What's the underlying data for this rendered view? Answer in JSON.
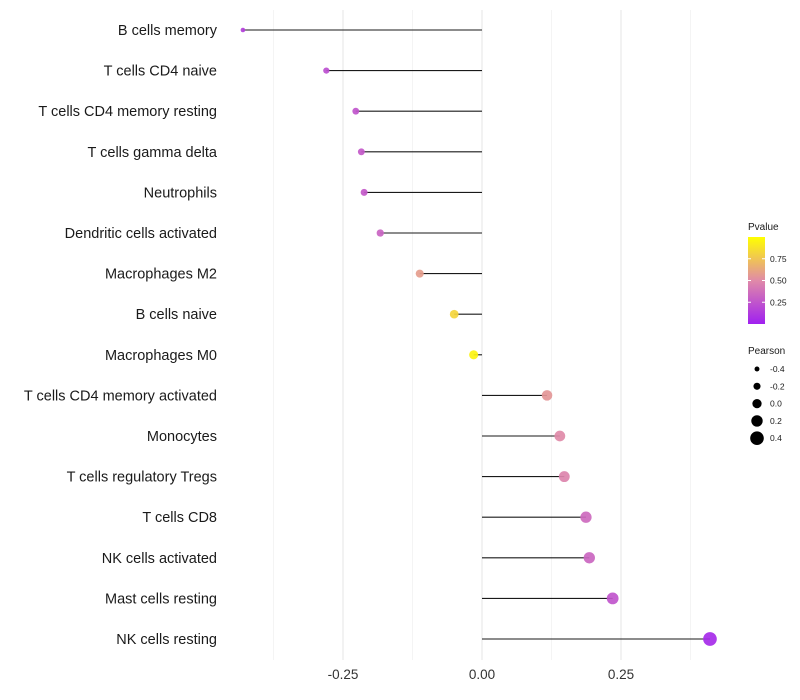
{
  "chart_data": {
    "type": "lollipop",
    "title": "",
    "xlabel": "",
    "ylabel": "",
    "xlim": [
      -0.45,
      0.43
    ],
    "x_ticks": [
      -0.25,
      0.0,
      0.25
    ],
    "x_tick_labels": [
      "-0.25",
      "0.00",
      "0.25"
    ],
    "baseline": 0.0,
    "points": [
      {
        "category": "B cells memory",
        "pearson": -0.43,
        "pvalue": 0.15
      },
      {
        "category": "T cells CD4 naive",
        "pearson": -0.28,
        "pvalue": 0.22
      },
      {
        "category": "T cells CD4 memory resting",
        "pearson": -0.227,
        "pvalue": 0.25
      },
      {
        "category": "T cells gamma delta",
        "pearson": -0.217,
        "pvalue": 0.27
      },
      {
        "category": "Neutrophils",
        "pearson": -0.212,
        "pvalue": 0.27
      },
      {
        "category": "Dendritic cells activated",
        "pearson": -0.183,
        "pvalue": 0.32
      },
      {
        "category": "Macrophages M2",
        "pearson": -0.112,
        "pvalue": 0.58
      },
      {
        "category": "B cells naive",
        "pearson": -0.05,
        "pvalue": 0.82
      },
      {
        "category": "Macrophages M0",
        "pearson": -0.015,
        "pvalue": 0.95
      },
      {
        "category": "T cells CD4 memory activated",
        "pearson": 0.117,
        "pvalue": 0.55
      },
      {
        "category": "Monocytes",
        "pearson": 0.14,
        "pvalue": 0.5
      },
      {
        "category": "T cells regulatory  Tregs ",
        "pearson": 0.148,
        "pvalue": 0.47
      },
      {
        "category": "T cells CD8",
        "pearson": 0.187,
        "pvalue": 0.35
      },
      {
        "category": "NK cells activated",
        "pearson": 0.193,
        "pvalue": 0.33
      },
      {
        "category": "Mast cells resting",
        "pearson": 0.235,
        "pvalue": 0.25
      },
      {
        "category": "NK cells resting",
        "pearson": 0.41,
        "pvalue": 0.05
      }
    ],
    "legend_color": {
      "title": "Pvalue",
      "ticks": [
        0.25,
        0.5,
        0.75
      ],
      "tick_labels": [
        "0.25",
        "0.50",
        "0.75"
      ],
      "range": [
        0.0,
        1.0
      ],
      "low_color": "#a020f0",
      "mid_color": "#e08aa8",
      "high_color": "#ffff00"
    },
    "legend_size": {
      "title": "Pearson",
      "values": [
        -0.4,
        -0.2,
        0.0,
        0.2,
        0.4
      ],
      "labels": [
        "-0.4",
        "-0.2",
        "0.0",
        "0.2",
        "0.4"
      ]
    },
    "legend_placement": "right",
    "grid": true
  }
}
